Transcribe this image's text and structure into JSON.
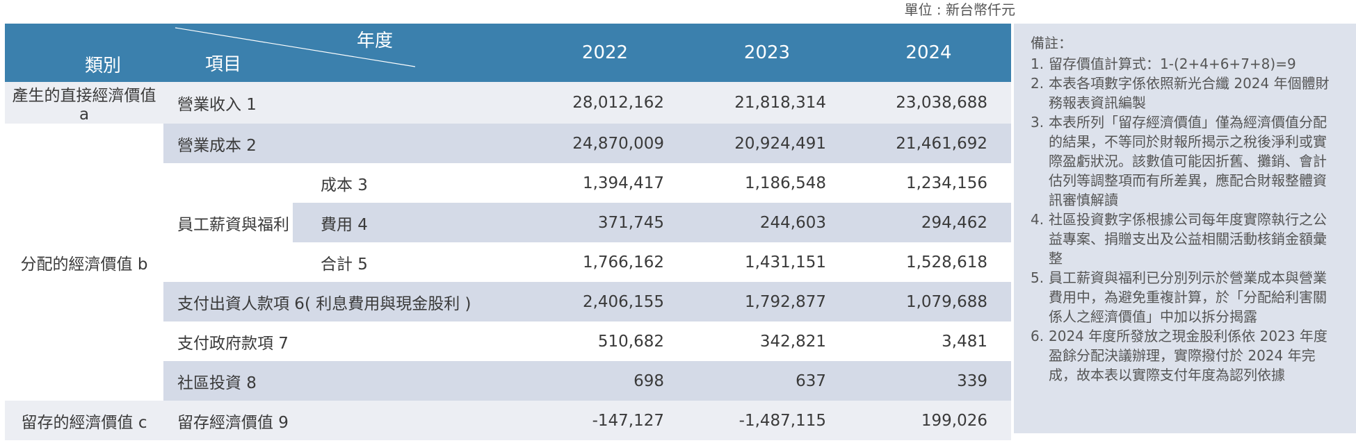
{
  "unit": "單位 : 新台幣仟元",
  "header": {
    "category": "類別",
    "year": "年度",
    "item": "項目",
    "years": [
      "2022",
      "2023",
      "2024"
    ]
  },
  "rows": {
    "revenue": {
      "category": "產生的直接經濟價值 a",
      "label": "營業收入 1",
      "values": [
        "28,012,162",
        "21,818,314",
        "23,038,688"
      ]
    },
    "cost": {
      "label": "營業成本 2",
      "values": [
        "24,870,009",
        "20,924,491",
        "21,461,692"
      ]
    },
    "employee": {
      "label": "員工薪資與福利",
      "cost": {
        "label": "成本 3",
        "values": [
          "1,394,417",
          "1,186,548",
          "1,234,156"
        ]
      },
      "expense": {
        "label": "費用 4",
        "values": [
          "371,745",
          "244,603",
          "294,462"
        ]
      },
      "total": {
        "label": "合計 5",
        "values": [
          "1,766,162",
          "1,431,151",
          "1,528,618"
        ]
      }
    },
    "distributed_category": "分配的經濟價值 b",
    "investors": {
      "label": "支付出資人款項 6( 利息費用與現金股利 )",
      "values": [
        "2,406,155",
        "1,792,877",
        "1,079,688"
      ]
    },
    "government": {
      "label": "支付政府款項 7",
      "values": [
        "510,682",
        "342,821",
        "3,481"
      ]
    },
    "community": {
      "label": "社區投資 8",
      "values": [
        "698",
        "637",
        "339"
      ]
    },
    "retained": {
      "category": "留存的經濟價值 c",
      "label": "留存經濟價值 9",
      "values": [
        "-147,127",
        "-1,487,115",
        "199,026"
      ]
    }
  },
  "notes": {
    "title": "備註：",
    "items": [
      {
        "n": "1.",
        "text": "留存價值計算式：1-(2+4+6+7+8)=9"
      },
      {
        "n": "2.",
        "text": "本表各項數字係依照新光合纖 2024 年個體財務報表資訊編製"
      },
      {
        "n": "3.",
        "text": "本表所列「留存經濟價值」僅為經濟價值分配的結果，不等同於財報所揭示之稅後淨利或實際盈虧狀況。該數值可能因折舊、攤銷、會計估列等調整項而有所差異，應配合財報整體資訊審慎解讀"
      },
      {
        "n": "4.",
        "text": "社區投資數字係根據公司每年度實際執行之公益專案、捐贈支出及公益相關活動核銷金額彙整"
      },
      {
        "n": "5.",
        "text": "員工薪資與福利已分別列示於營業成本與營業費用中，為避免重複計算，於「分配給利害關係人之經濟價值」中加以拆分揭露"
      },
      {
        "n": "6.",
        "text": "2024 年度所發放之現金股利係依 2023 年度盈餘分配決議辦理，實際撥付於 2024 年完成，故本表以實際支付年度為認列依據"
      }
    ]
  }
}
